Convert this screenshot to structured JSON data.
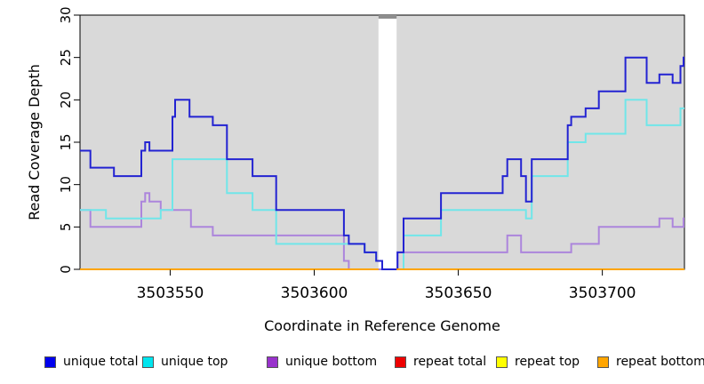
{
  "figure": {
    "xlabel": "Coordinate in Reference Genome",
    "ylabel": "Read Coverage Depth"
  },
  "legend": {
    "items": [
      {
        "id": "unique-total",
        "label": "unique total",
        "swatch_color": "#0000EE"
      },
      {
        "id": "unique-top",
        "label": "unique top",
        "swatch_color": "#00E5EE"
      },
      {
        "id": "unique-bottom",
        "label": "unique bottom",
        "swatch_color": "#9932CC"
      },
      {
        "id": "repeat-total",
        "label": "repeat total",
        "swatch_color": "#EE0000"
      },
      {
        "id": "repeat-top",
        "label": "repeat top",
        "swatch_color": "#FFFF00"
      },
      {
        "id": "repeat-bottom",
        "label": "repeat bottom",
        "swatch_color": "#FFA500"
      }
    ]
  },
  "chart_data": {
    "type": "line",
    "subtype": "step-after",
    "title": "",
    "xlabel": "Coordinate in Reference Genome",
    "ylabel": "Read Coverage Depth",
    "plot_background": "#D9D9D9",
    "x_axis": {
      "min": 3503518.7,
      "max": 3503728.5,
      "ticks": [
        3503550,
        3503600,
        3503650,
        3503700
      ]
    },
    "y_axis": {
      "min": 0,
      "max": 30,
      "ticks": [
        0,
        5,
        10,
        15,
        20,
        25,
        30
      ]
    },
    "masked_region": {
      "from": 3503622.3,
      "to": 3503628.6,
      "fill": "#FFFFFF",
      "cap_color": "#8E8E8E"
    },
    "series": [
      {
        "id": "repeat-total",
        "name": "repeat total",
        "line_color": "#DD0000",
        "segments": [
          {
            "points": [
              [
                3503518.7,
                0
              ]
            ],
            "end": 3503622.3
          },
          {
            "points": [
              [
                3503628.6,
                0
              ]
            ],
            "end": 3503728.5
          }
        ]
      },
      {
        "id": "repeat-top",
        "name": "repeat top",
        "line_color": "#FFFF00",
        "segments": [
          {
            "points": [
              [
                3503518.7,
                0
              ]
            ],
            "end": 3503622.3
          },
          {
            "points": [
              [
                3503628.6,
                0
              ]
            ],
            "end": 3503728.5
          }
        ]
      },
      {
        "id": "unique-bottom",
        "name": "unique bottom",
        "line_color": "#AC85DC",
        "segments": [
          {
            "points": [
              [
                3503518.7,
                7
              ],
              [
                3503522.3,
                5
              ],
              [
                3503540.0,
                8
              ],
              [
                3503541.3,
                9
              ],
              [
                3503542.8,
                8
              ],
              [
                3503546.7,
                7
              ],
              [
                3503557.2,
                5
              ],
              [
                3503564.8,
                4
              ],
              [
                3503610.3,
                1
              ],
              [
                3503612.0,
                0
              ],
              [
                3503628.9,
                2
              ],
              [
                3503667.0,
                4
              ],
              [
                3503671.8,
                2
              ],
              [
                3503689.2,
                3
              ],
              [
                3503698.8,
                5
              ],
              [
                3503719.8,
                6
              ],
              [
                3503724.4,
                5
              ],
              [
                3503728.2,
                6
              ]
            ],
            "end": 3503728.5
          }
        ]
      },
      {
        "id": "unique-top",
        "name": "unique top",
        "line_color": "#70E6E9",
        "segments": [
          {
            "points": [
              [
                3503518.7,
                7
              ],
              [
                3503527.7,
                6
              ],
              [
                3503546.7,
                7
              ],
              [
                3503550.8,
                13
              ],
              [
                3503569.7,
                9
              ],
              [
                3503578.6,
                7
              ],
              [
                3503586.8,
                3
              ],
              [
                3503617.5,
                2
              ],
              [
                3503621.5,
                1
              ],
              [
                3503623.6,
                0
              ],
              [
                3503631.0,
                4
              ],
              [
                3503644.0,
                7
              ],
              [
                3503673.5,
                6
              ],
              [
                3503675.5,
                11
              ],
              [
                3503688.0,
                15
              ],
              [
                3503694.2,
                16
              ],
              [
                3503708.0,
                20
              ],
              [
                3503715.4,
                17
              ],
              [
                3503727.1,
                19
              ]
            ],
            "end": 3503728.5
          }
        ]
      },
      {
        "id": "unique-total",
        "name": "unique total",
        "line_color": "#2323D2",
        "segments": [
          {
            "points": [
              [
                3503518.7,
                14
              ],
              [
                3503522.3,
                12
              ],
              [
                3503530.5,
                11
              ],
              [
                3503540.0,
                14
              ],
              [
                3503541.3,
                15
              ],
              [
                3503542.8,
                14
              ],
              [
                3503550.8,
                18
              ],
              [
                3503551.7,
                20
              ],
              [
                3503556.7,
                18
              ],
              [
                3503564.8,
                17
              ],
              [
                3503569.7,
                13
              ],
              [
                3503578.6,
                11
              ],
              [
                3503586.8,
                7
              ],
              [
                3503610.3,
                4
              ],
              [
                3503612.0,
                3
              ],
              [
                3503617.5,
                2
              ],
              [
                3503621.5,
                1
              ],
              [
                3503623.6,
                0
              ],
              [
                3503628.9,
                2
              ],
              [
                3503631.0,
                6
              ],
              [
                3503644.0,
                9
              ],
              [
                3503665.4,
                11
              ],
              [
                3503667.0,
                13
              ],
              [
                3503671.8,
                11
              ],
              [
                3503673.5,
                8
              ],
              [
                3503675.5,
                13
              ],
              [
                3503688.0,
                17
              ],
              [
                3503689.2,
                18
              ],
              [
                3503694.2,
                19
              ],
              [
                3503698.8,
                21
              ],
              [
                3503708.0,
                25
              ],
              [
                3503715.4,
                22
              ],
              [
                3503719.8,
                23
              ],
              [
                3503724.4,
                22
              ],
              [
                3503727.1,
                24
              ],
              [
                3503728.2,
                25
              ]
            ],
            "end": 3503728.5
          }
        ]
      },
      {
        "id": "repeat-bottom",
        "name": "repeat bottom",
        "line_color": "#FFA500",
        "segments": [
          {
            "points": [
              [
                3503518.7,
                0
              ]
            ],
            "end": 3503622.3
          },
          {
            "points": [
              [
                3503628.6,
                0
              ]
            ],
            "end": 3503728.5
          }
        ]
      }
    ]
  }
}
